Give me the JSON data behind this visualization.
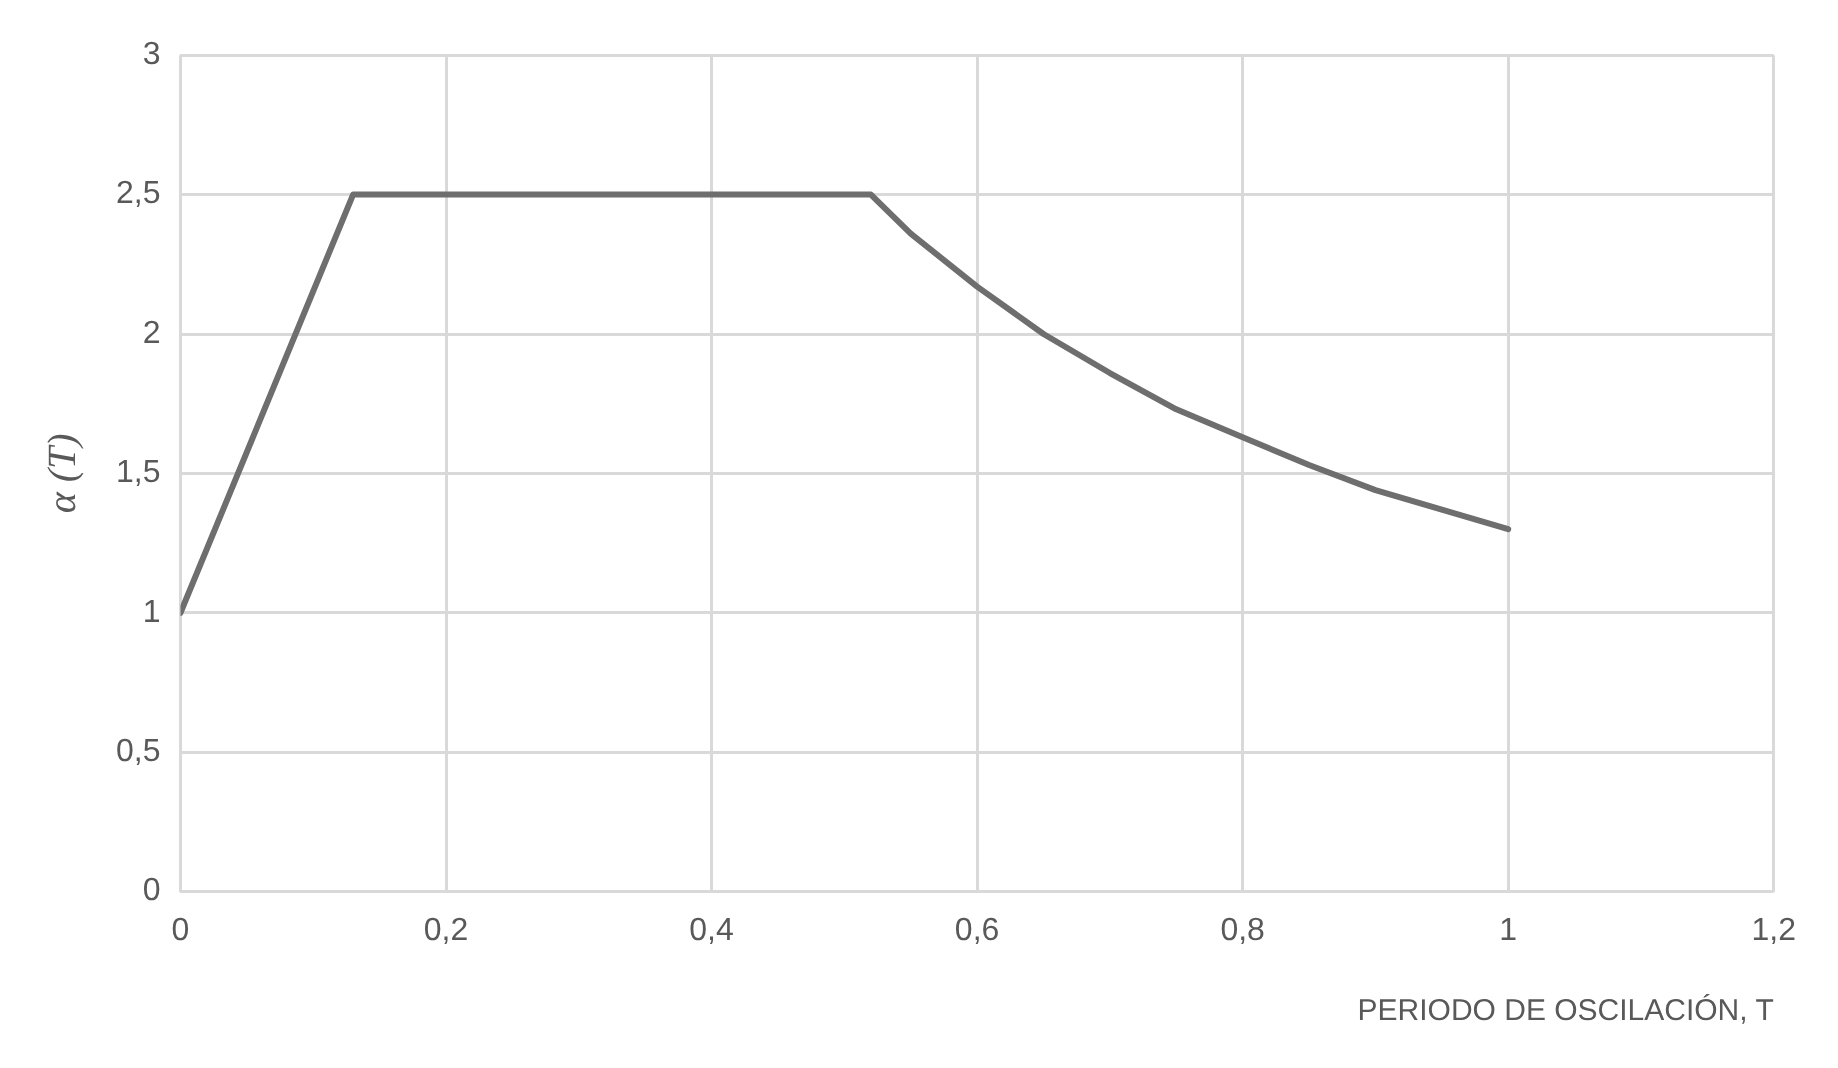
{
  "chart_data": {
    "type": "line",
    "xlabel": "PERIODO DE OSCILACIÓN, T",
    "ylabel": "α (T)",
    "series": [
      {
        "color": "#6e6e6e",
        "x": [
          0,
          0.13,
          0.52,
          0.55,
          0.6,
          0.65,
          0.7,
          0.75,
          0.8,
          0.85,
          0.9,
          0.95,
          1
        ],
        "values": [
          1,
          2.5,
          2.5,
          2.36,
          2.17,
          2.0,
          1.86,
          1.73,
          1.63,
          1.53,
          1.44,
          1.37,
          1.3
        ]
      }
    ],
    "xlim": [
      0,
      1.2
    ],
    "xticks": [
      0,
      {
        "value": 0.2,
        "label": "0,2"
      },
      {
        "value": 0.4,
        "label": "0,4"
      },
      {
        "value": 0.6,
        "label": "0,6"
      },
      {
        "value": 0.8,
        "label": "0,8"
      },
      1,
      {
        "value": 1.2,
        "label": "1,2"
      }
    ],
    "ylim": [
      0,
      3
    ],
    "yticks": [
      0,
      {
        "value": 0.5,
        "label": "0,5"
      },
      1,
      {
        "value": 1.5,
        "label": "1,5"
      },
      2,
      {
        "value": 2.5,
        "label": "2,5"
      },
      3
    ],
    "grid": true,
    "legend": false,
    "marker": "none",
    "line_style": "solid"
  }
}
